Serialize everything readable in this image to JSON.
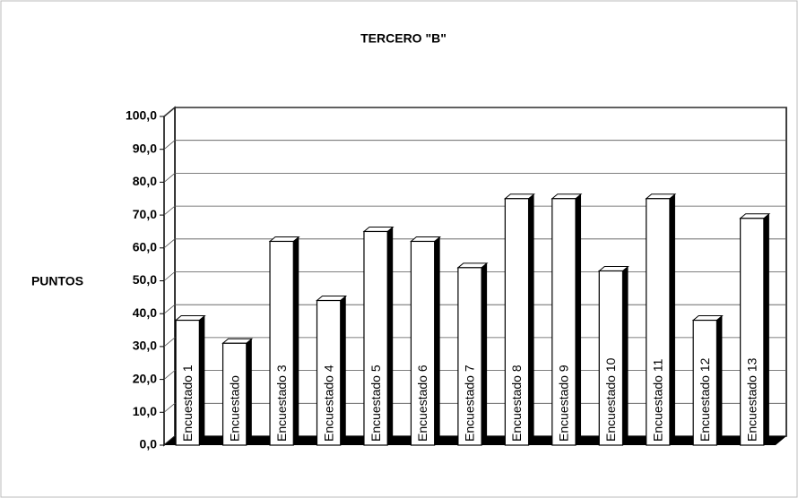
{
  "chart_data": {
    "type": "bar3d",
    "title": "TERCERO \"B\"",
    "y_label": "PUNTOS",
    "categories": [
      "Encuestado 1",
      "Encuestado",
      "Encuestado 3",
      "Encuestado 4",
      "Encuestado 5",
      "Encuestado 6",
      "Encuestado 7",
      "Encuestado 8",
      "Encuestado 9",
      "Encuestado 10",
      "Encuestado 11",
      "Encuestado 12",
      "Encuestado 13"
    ],
    "values": [
      38,
      31,
      62,
      44,
      65,
      62,
      54,
      75,
      75,
      53,
      75,
      38,
      69
    ],
    "color": "#ffffff",
    "ylim": [
      0,
      100
    ],
    "yticks": [
      {
        "value": 0,
        "label": "0,0"
      },
      {
        "value": 10,
        "label": "10,0"
      },
      {
        "value": 20,
        "label": "20,0"
      },
      {
        "value": 30,
        "label": "30,0"
      },
      {
        "value": 40,
        "label": "40,0"
      },
      {
        "value": 50,
        "label": "50,0"
      },
      {
        "value": 60,
        "label": "60,0"
      },
      {
        "value": 70,
        "label": "70,0"
      },
      {
        "value": 80,
        "label": "80,0"
      },
      {
        "value": 90,
        "label": "90,0"
      },
      {
        "value": 100,
        "label": "100,0"
      }
    ],
    "grid": true
  }
}
